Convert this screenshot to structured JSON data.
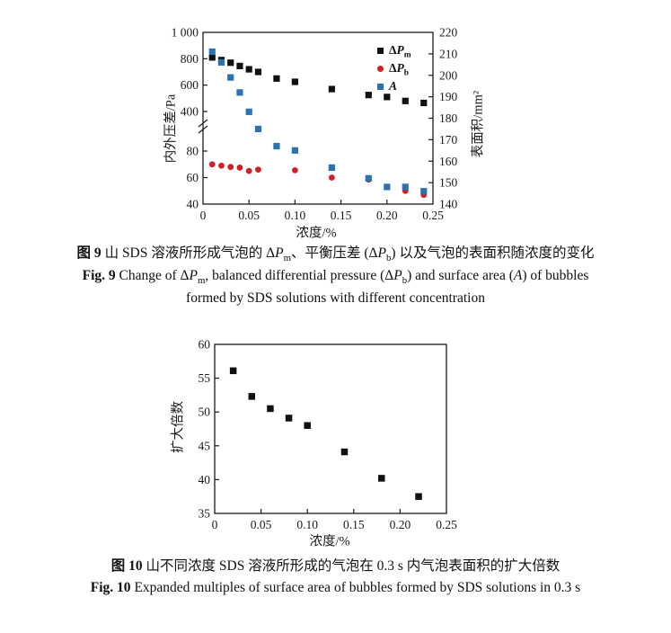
{
  "chart_data": [
    {
      "type": "scatter",
      "title": "",
      "xlabel": "浓度/%",
      "ylabel_left": "内外压差/Pa",
      "ylabel_right": "表面积/mm²",
      "xlim": [
        0,
        0.25
      ],
      "x_ticks": [
        {
          "v": 0,
          "label": "0"
        },
        {
          "v": 0.05,
          "label": "0.05"
        },
        {
          "v": 0.1,
          "label": "0.10"
        },
        {
          "v": 0.15,
          "label": "0.15"
        },
        {
          "v": 0.2,
          "label": "0.20"
        },
        {
          "v": 0.25,
          "label": "0.25"
        }
      ],
      "left_axis": {
        "broken": true,
        "lower_range": [
          40,
          80
        ],
        "upper_range": [
          400,
          1000
        ],
        "ticks": [
          {
            "v": 1000,
            "label": "1 000"
          },
          {
            "v": 800,
            "label": "800"
          },
          {
            "v": 600,
            "label": "600"
          },
          {
            "v": 400,
            "label": "400"
          },
          {
            "v": 80,
            "label": "80"
          },
          {
            "v": 60,
            "label": "60"
          },
          {
            "v": 40,
            "label": "40"
          }
        ]
      },
      "right_axis": {
        "range": [
          140,
          220
        ],
        "ticks": [
          {
            "v": 220,
            "label": "220"
          },
          {
            "v": 210,
            "label": "210"
          },
          {
            "v": 200,
            "label": "200"
          },
          {
            "v": 190,
            "label": "190"
          },
          {
            "v": 180,
            "label": "180"
          },
          {
            "v": 170,
            "label": "170"
          },
          {
            "v": 160,
            "label": "160"
          },
          {
            "v": 150,
            "label": "150"
          },
          {
            "v": 140,
            "label": "140"
          }
        ]
      },
      "legend": [
        {
          "marker": "square",
          "color": "#111111",
          "label": [
            {
              "t": "Δ"
            },
            {
              "t": "P",
              "i": true
            },
            {
              "t": "m",
              "sub": true
            }
          ]
        },
        {
          "marker": "circle",
          "color": "#cf2127",
          "label": [
            {
              "t": "Δ"
            },
            {
              "t": "P",
              "i": true
            },
            {
              "t": "b",
              "sub": true
            }
          ]
        },
        {
          "marker": "square",
          "color": "#2b72b0",
          "label": [
            {
              "t": "A",
              "i": true
            }
          ]
        }
      ],
      "series": [
        {
          "name": "ΔPm",
          "axis": "left",
          "marker": "square",
          "color": "#111111",
          "x": [
            0.01,
            0.02,
            0.03,
            0.04,
            0.05,
            0.06,
            0.08,
            0.1,
            0.14,
            0.18,
            0.2,
            0.22,
            0.24
          ],
          "y": [
            810,
            790,
            770,
            745,
            720,
            700,
            650,
            625,
            570,
            525,
            510,
            480,
            465
          ]
        },
        {
          "name": "ΔPb",
          "axis": "left",
          "marker": "circle",
          "color": "#cf2127",
          "x": [
            0.01,
            0.02,
            0.03,
            0.04,
            0.05,
            0.06,
            0.1,
            0.14,
            0.18,
            0.2,
            0.22,
            0.24
          ],
          "y": [
            70,
            69,
            68,
            67.5,
            65,
            66,
            65.5,
            60,
            58.5,
            53,
            50,
            47
          ]
        },
        {
          "name": "A",
          "axis": "right",
          "marker": "square",
          "color": "#2b72b0",
          "x": [
            0.01,
            0.02,
            0.03,
            0.04,
            0.05,
            0.06,
            0.08,
            0.1,
            0.14,
            0.18,
            0.2,
            0.22,
            0.24
          ],
          "y": [
            211,
            206,
            199,
            192,
            183,
            175,
            167,
            165,
            157,
            152,
            148,
            148,
            146
          ]
        }
      ]
    },
    {
      "type": "scatter",
      "title": "",
      "xlabel": "浓度/%",
      "ylabel": "扩大倍数",
      "xlim": [
        0,
        0.25
      ],
      "ylim": [
        35,
        60
      ],
      "x_ticks": [
        {
          "v": 0,
          "label": "0"
        },
        {
          "v": 0.05,
          "label": "0.05"
        },
        {
          "v": 0.1,
          "label": "0.10"
        },
        {
          "v": 0.15,
          "label": "0.15"
        },
        {
          "v": 0.2,
          "label": "0.20"
        },
        {
          "v": 0.25,
          "label": "0.25"
        }
      ],
      "y_ticks": [
        {
          "v": 60,
          "label": "60"
        },
        {
          "v": 55,
          "label": "55"
        },
        {
          "v": 50,
          "label": "50"
        },
        {
          "v": 45,
          "label": "45"
        },
        {
          "v": 40,
          "label": "40"
        },
        {
          "v": 35,
          "label": "35"
        }
      ],
      "series": [
        {
          "name": "扩大倍数",
          "marker": "square",
          "color": "#111111",
          "x": [
            0.02,
            0.04,
            0.06,
            0.08,
            0.1,
            0.14,
            0.18,
            0.22
          ],
          "y": [
            56.1,
            52.3,
            50.5,
            49.1,
            48.0,
            44.1,
            40.2,
            37.5
          ]
        }
      ]
    }
  ],
  "captions": {
    "fig9_zh": [
      {
        "t": "图 9",
        "b": true
      },
      {
        "t": "  山 SDS 溶液所形成气泡的 Δ"
      },
      {
        "t": "P",
        "i": true
      },
      {
        "t": "m",
        "sub": true
      },
      {
        "t": "、平衡压差 (Δ"
      },
      {
        "t": "P",
        "i": true
      },
      {
        "t": "b",
        "sub": true
      },
      {
        "t": ") 以及气泡的表面积随浓度的变化"
      }
    ],
    "fig9_en_line1": [
      {
        "t": "Fig. 9",
        "b": true
      },
      {
        "t": "  Change of Δ"
      },
      {
        "t": "P",
        "i": true
      },
      {
        "t": "m",
        "sub": true
      },
      {
        "t": ", balanced differential pressure (Δ"
      },
      {
        "t": "P",
        "i": true
      },
      {
        "t": "b",
        "sub": true
      },
      {
        "t": ") and surface area ("
      },
      {
        "t": "A",
        "i": true
      },
      {
        "t": ") of bubbles"
      }
    ],
    "fig9_en_line2": "formed by SDS solutions with different concentration",
    "fig10_zh": [
      {
        "t": "图 10",
        "b": true
      },
      {
        "t": "  山不同浓度 SDS 溶液所形成的气泡在 0.3 s 内气泡表面积的扩大倍数"
      }
    ],
    "fig10_en": [
      {
        "t": "Fig. 10",
        "b": true
      },
      {
        "t": "  Expanded multiples of surface area of bubbles formed by SDS solutions in 0.3 s"
      }
    ]
  },
  "colors": {
    "axis": "#1a1a1a",
    "series_pm": "#111111",
    "series_pb": "#cf2127",
    "series_a": "#2b72b0"
  }
}
